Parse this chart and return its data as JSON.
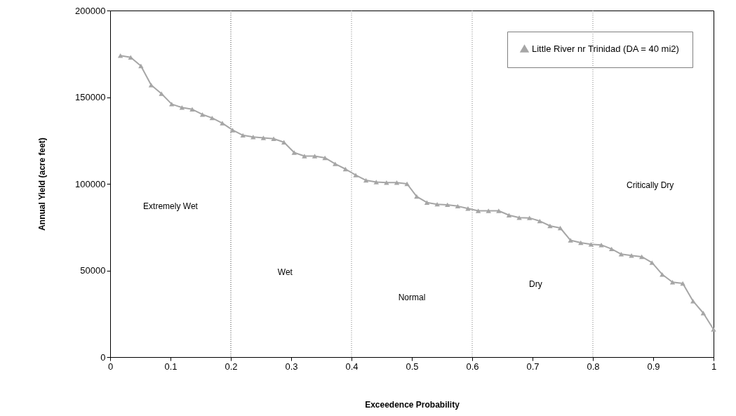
{
  "chart_data": {
    "type": "line",
    "xlabel": "Exceedence Probability",
    "ylabel": "Annual Yield (acre feet)",
    "x": [
      0.017,
      0.034,
      0.051,
      0.068,
      0.085,
      0.102,
      0.119,
      0.136,
      0.153,
      0.169,
      0.186,
      0.203,
      0.22,
      0.237,
      0.254,
      0.271,
      0.288,
      0.305,
      0.322,
      0.339,
      0.356,
      0.373,
      0.39,
      0.407,
      0.424,
      0.441,
      0.458,
      0.475,
      0.492,
      0.508,
      0.525,
      0.542,
      0.559,
      0.576,
      0.593,
      0.61,
      0.627,
      0.644,
      0.661,
      0.678,
      0.695,
      0.712,
      0.729,
      0.746,
      0.763,
      0.78,
      0.797,
      0.814,
      0.831,
      0.847,
      0.864,
      0.881,
      0.898,
      0.915,
      0.932,
      0.949,
      0.966,
      0.983,
      1.0
    ],
    "series": [
      {
        "name": "Little River nr Trinidad (DA = 40 mi2)",
        "color": "#a6a6a6",
        "values": [
          174000,
          173000,
          168000,
          157000,
          152000,
          146000,
          144000,
          143000,
          140000,
          138000,
          135000,
          131000,
          128000,
          127000,
          126500,
          126000,
          124000,
          118000,
          116000,
          116000,
          115000,
          111500,
          108500,
          105000,
          102000,
          101000,
          100700,
          100700,
          100000,
          92700,
          89200,
          88200,
          87900,
          87100,
          85700,
          84400,
          84400,
          84400,
          81900,
          80500,
          80300,
          78500,
          75700,
          74500,
          67400,
          66000,
          65100,
          64700,
          62400,
          59400,
          58600,
          57900,
          54500,
          47700,
          43200,
          42500,
          32300,
          25400,
          16000
        ]
      }
    ],
    "xlim": [
      0,
      1
    ],
    "ylim": [
      0,
      200000
    ],
    "xticks": [
      0,
      0.1,
      0.2,
      0.3,
      0.4,
      0.5,
      0.6,
      0.7,
      0.8,
      0.9,
      1
    ],
    "yticks": [
      0,
      50000,
      100000,
      150000,
      200000
    ],
    "marker": "triangle",
    "line_style": "solid",
    "legend": "top right",
    "grid": false,
    "ref_lines": [
      {
        "axis": "x",
        "value": 0.2,
        "color": "#404040",
        "line_style": "dotted"
      },
      {
        "axis": "x",
        "value": 0.4,
        "color": "#808080",
        "line_style": "dotted"
      },
      {
        "axis": "x",
        "value": 0.6,
        "color": "#808080",
        "line_style": "dotted"
      },
      {
        "axis": "x",
        "value": 0.8,
        "color": "#808080",
        "line_style": "dotted"
      }
    ],
    "annotations": [
      "Extremely Wet",
      "Wet",
      "Normal",
      "Dry",
      "Critically Dry"
    ]
  }
}
